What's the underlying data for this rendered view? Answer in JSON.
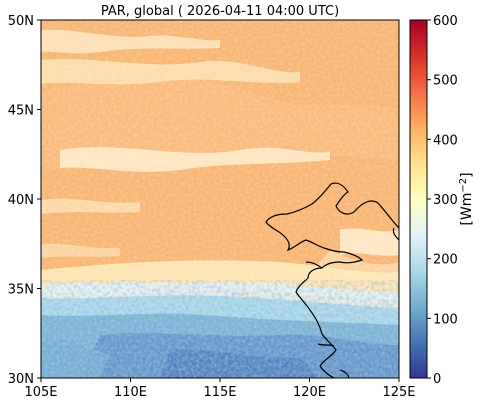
{
  "title": "PAR, global ( 2026-04-11 04:00 UTC)",
  "x_ticks": [
    "105E",
    "110E",
    "115E",
    "120E",
    "125E"
  ],
  "y_ticks": [
    "50N",
    "45N",
    "40N",
    "35N",
    "30N"
  ],
  "colorbar": {
    "ticks": [
      "600",
      "500",
      "400",
      "300",
      "200",
      "100",
      "0"
    ],
    "label": "[Wm",
    "label_exp": "−2",
    "label_end": "]",
    "range": [
      0,
      600
    ],
    "colormap": "RdYlBu_r",
    "colors": [
      "#313695",
      "#4575b4",
      "#74add1",
      "#abd9e9",
      "#e0f3f8",
      "#ffffbf",
      "#fee090",
      "#fdae61",
      "#f46d43",
      "#d73027",
      "#a50026"
    ]
  },
  "map": {
    "extent_lon": [
      105,
      125
    ],
    "extent_lat": [
      30,
      50
    ],
    "dominant_value_color": "#f8b675"
  }
}
